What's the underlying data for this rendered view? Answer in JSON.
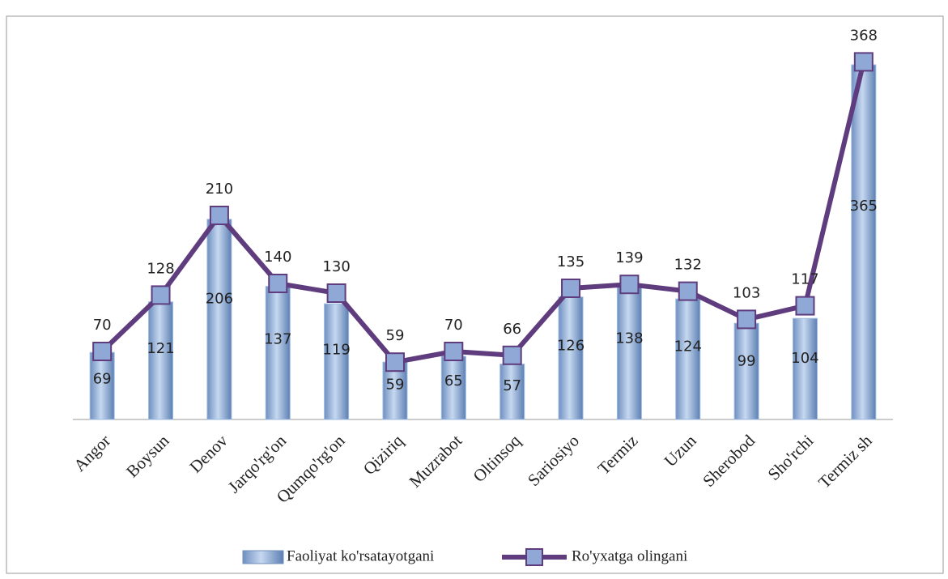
{
  "chart_data": {
    "type": "bar-line",
    "categories": [
      "Angor",
      "Boysun",
      "Denov",
      "Jarqo'rg'on",
      "Qumqo'rg'on",
      "Qiziriq",
      "Muzrabot",
      "Oltinsoq",
      "Sariosiyo",
      "Termiz",
      "Uzun",
      "Sherobod",
      "Sho'rchi",
      "Termiz sh"
    ],
    "series": [
      {
        "name": "Faoliyat ko'rsatayotgani",
        "type": "bar",
        "color": "#9dbbe3",
        "values": [
          69,
          121,
          206,
          137,
          119,
          59,
          65,
          57,
          126,
          138,
          124,
          99,
          104,
          365
        ]
      },
      {
        "name": "Ro'yxatga olingani",
        "type": "line",
        "color": "#5e3c7e",
        "marker_color": "#8fa8d6",
        "values": [
          70,
          128,
          210,
          140,
          130,
          59,
          70,
          66,
          135,
          139,
          132,
          103,
          117,
          368
        ]
      }
    ],
    "ylim": [
      0,
      400
    ]
  }
}
